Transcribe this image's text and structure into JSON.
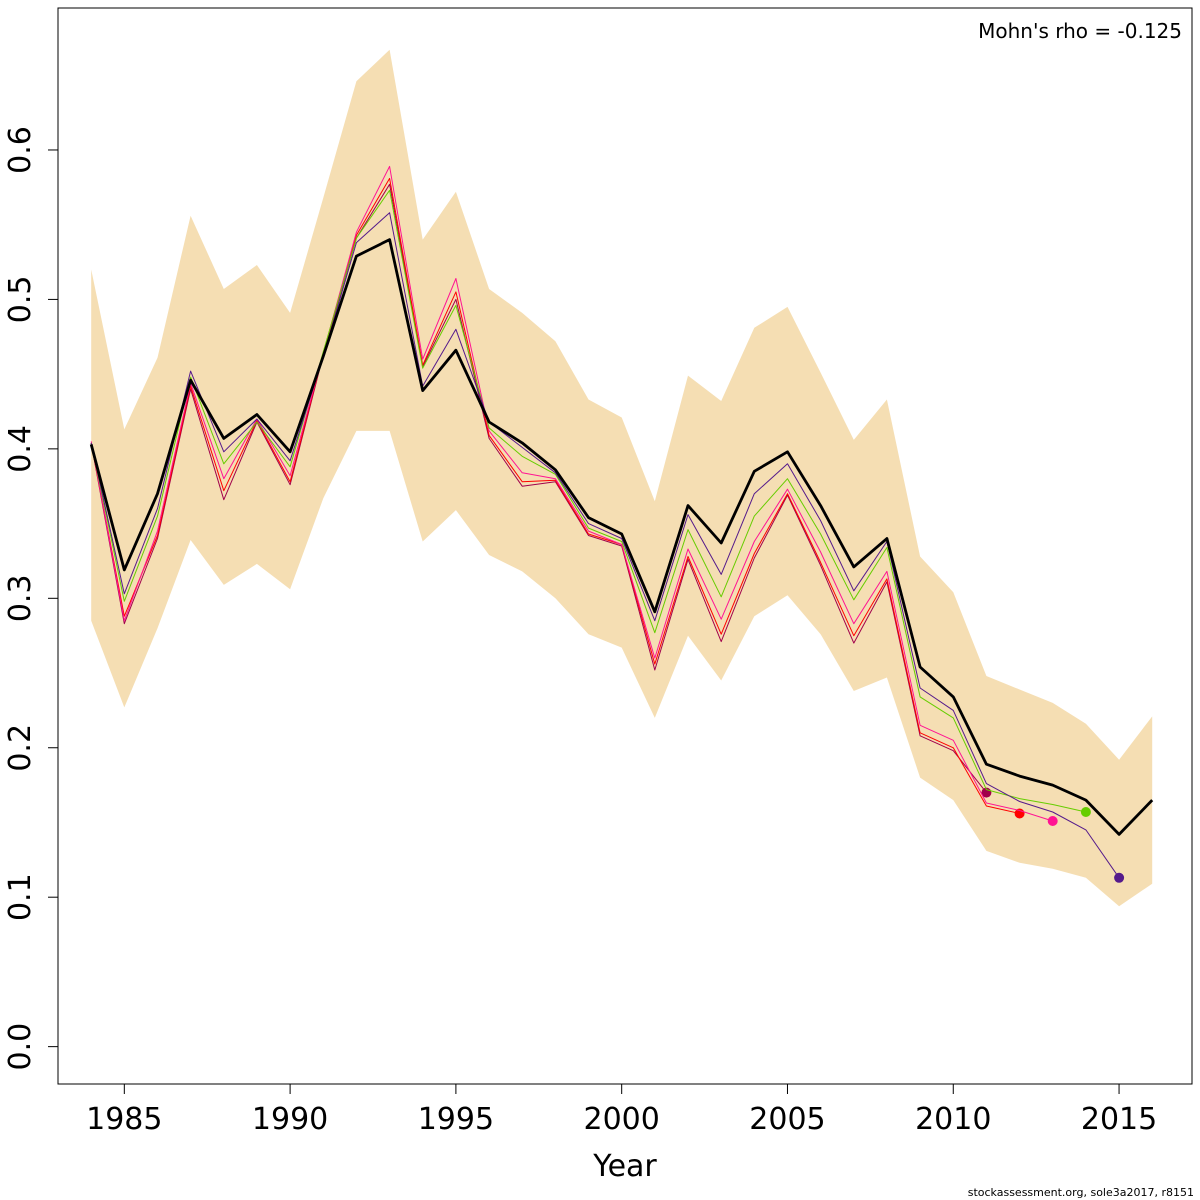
{
  "credit": "stockassessment.org, sole3a2017, r8151",
  "chart_data": {
    "type": "line",
    "title": "",
    "xlabel": "Year",
    "ylabel": "",
    "annotation": "Mohn's rho = -0.125",
    "xlim": [
      1983,
      2017.2
    ],
    "ylim": [
      -0.025,
      0.695
    ],
    "x_ticks": [
      1985,
      1990,
      1995,
      2000,
      2005,
      2010,
      2015
    ],
    "y_ticks": [
      0.0,
      0.1,
      0.2,
      0.3,
      0.4,
      0.5,
      0.6
    ],
    "y_tick_labels": [
      "0.0",
      "0.1",
      "0.2",
      "0.3",
      "0.4",
      "0.5",
      "0.6"
    ],
    "band": {
      "color": "#f5deb3",
      "x": [
        1984,
        1985,
        1986,
        1987,
        1988,
        1989,
        1990,
        1991,
        1992,
        1993,
        1994,
        1995,
        1996,
        1997,
        1998,
        1999,
        2000,
        2001,
        2002,
        2003,
        2004,
        2005,
        2006,
        2007,
        2008,
        2009,
        2010,
        2011,
        2012,
        2013,
        2014,
        2015,
        2016
      ],
      "upper": [
        0.52,
        0.413,
        0.461,
        0.556,
        0.507,
        0.523,
        0.491,
        0.568,
        0.646,
        0.667,
        0.54,
        0.572,
        0.507,
        0.491,
        0.472,
        0.433,
        0.421,
        0.365,
        0.449,
        0.432,
        0.481,
        0.495,
        0.451,
        0.406,
        0.433,
        0.328,
        0.304,
        0.248,
        0.239,
        0.23,
        0.216,
        0.192,
        0.221
      ],
      "lower": [
        0.285,
        0.227,
        0.28,
        0.339,
        0.309,
        0.323,
        0.306,
        0.367,
        0.412,
        0.412,
        0.338,
        0.359,
        0.329,
        0.318,
        0.3,
        0.276,
        0.267,
        0.22,
        0.275,
        0.245,
        0.288,
        0.302,
        0.276,
        0.238,
        0.247,
        0.18,
        0.165,
        0.131,
        0.123,
        0.119,
        0.113,
        0.094,
        0.109
      ]
    },
    "series": [
      {
        "color": "#000000",
        "width": 2.8,
        "marker": false,
        "x": [
          1984,
          1985,
          1986,
          1987,
          1988,
          1989,
          1990,
          1991,
          1992,
          1993,
          1994,
          1995,
          1996,
          1997,
          1998,
          1999,
          2000,
          2001,
          2002,
          2003,
          2004,
          2005,
          2006,
          2007,
          2008,
          2009,
          2010,
          2011,
          2012,
          2013,
          2014,
          2015,
          2016
        ],
        "values": [
          0.403,
          0.319,
          0.37,
          0.446,
          0.407,
          0.423,
          0.398,
          0.462,
          0.529,
          0.54,
          0.439,
          0.466,
          0.418,
          0.404,
          0.386,
          0.354,
          0.343,
          0.291,
          0.362,
          0.337,
          0.385,
          0.398,
          0.362,
          0.321,
          0.34,
          0.254,
          0.234,
          0.189,
          0.181,
          0.175,
          0.165,
          0.142,
          0.165
        ]
      },
      {
        "color": "#551a8b",
        "width": 1,
        "marker": true,
        "x": [
          1984,
          1985,
          1986,
          1987,
          1988,
          1989,
          1990,
          1991,
          1992,
          1993,
          1994,
          1995,
          1996,
          1997,
          1998,
          1999,
          2000,
          2001,
          2002,
          2003,
          2004,
          2005,
          2006,
          2007,
          2008,
          2009,
          2010,
          2011,
          2012,
          2013,
          2014,
          2015
        ],
        "values": [
          0.404,
          0.303,
          0.36,
          0.452,
          0.398,
          0.42,
          0.392,
          0.462,
          0.538,
          0.558,
          0.442,
          0.48,
          0.418,
          0.401,
          0.384,
          0.35,
          0.34,
          0.285,
          0.356,
          0.316,
          0.37,
          0.39,
          0.352,
          0.305,
          0.338,
          0.24,
          0.225,
          0.176,
          0.164,
          0.157,
          0.145,
          0.113
        ]
      },
      {
        "color": "#66cd00",
        "width": 1,
        "marker": true,
        "x": [
          1984,
          1985,
          1986,
          1987,
          1988,
          1989,
          1990,
          1991,
          1992,
          1993,
          1994,
          1995,
          1996,
          1997,
          1998,
          1999,
          2000,
          2001,
          2002,
          2003,
          2004,
          2005,
          2006,
          2007,
          2008,
          2009,
          2010,
          2011,
          2012,
          2013,
          2014
        ],
        "values": [
          0.404,
          0.298,
          0.355,
          0.448,
          0.39,
          0.418,
          0.388,
          0.465,
          0.541,
          0.573,
          0.454,
          0.496,
          0.414,
          0.395,
          0.383,
          0.347,
          0.338,
          0.277,
          0.346,
          0.301,
          0.355,
          0.38,
          0.343,
          0.299,
          0.334,
          0.234,
          0.22,
          0.172,
          0.166,
          0.162,
          0.157
        ]
      },
      {
        "color": "#ff1493",
        "width": 1,
        "marker": true,
        "x": [
          1984,
          1985,
          1986,
          1987,
          1988,
          1989,
          1990,
          1991,
          1992,
          1993,
          1994,
          1995,
          1996,
          1997,
          1998,
          1999,
          2000,
          2001,
          2002,
          2003,
          2004,
          2005,
          2006,
          2007,
          2008,
          2009,
          2010,
          2011,
          2012,
          2013
        ],
        "values": [
          0.405,
          0.285,
          0.345,
          0.444,
          0.38,
          0.42,
          0.382,
          0.464,
          0.545,
          0.589,
          0.46,
          0.514,
          0.412,
          0.384,
          0.38,
          0.345,
          0.336,
          0.26,
          0.333,
          0.286,
          0.338,
          0.373,
          0.331,
          0.283,
          0.318,
          0.215,
          0.205,
          0.163,
          0.158,
          0.151
        ]
      },
      {
        "color": "#ff0000",
        "width": 1,
        "marker": true,
        "x": [
          1984,
          1985,
          1986,
          1987,
          1988,
          1989,
          1990,
          1991,
          1992,
          1993,
          1994,
          1995,
          1996,
          1997,
          1998,
          1999,
          2000,
          2001,
          2002,
          2003,
          2004,
          2005,
          2006,
          2007,
          2008,
          2009,
          2010,
          2011,
          2012
        ],
        "values": [
          0.404,
          0.288,
          0.342,
          0.442,
          0.372,
          0.419,
          0.378,
          0.464,
          0.543,
          0.581,
          0.456,
          0.505,
          0.409,
          0.378,
          0.379,
          0.343,
          0.336,
          0.256,
          0.328,
          0.276,
          0.33,
          0.37,
          0.324,
          0.275,
          0.313,
          0.21,
          0.2,
          0.161,
          0.156
        ]
      },
      {
        "color": "#a1004b",
        "width": 1,
        "marker": true,
        "x": [
          1984,
          1985,
          1986,
          1987,
          1988,
          1989,
          1990,
          1991,
          1992,
          1993,
          1994,
          1995,
          1996,
          1997,
          1998,
          1999,
          2000,
          2001,
          2002,
          2003,
          2004,
          2005,
          2006,
          2007,
          2008,
          2009,
          2010,
          2011
        ],
        "values": [
          0.404,
          0.283,
          0.34,
          0.44,
          0.366,
          0.418,
          0.376,
          0.463,
          0.541,
          0.577,
          0.455,
          0.5,
          0.407,
          0.375,
          0.378,
          0.342,
          0.335,
          0.252,
          0.326,
          0.271,
          0.327,
          0.369,
          0.322,
          0.27,
          0.311,
          0.208,
          0.198,
          0.17
        ]
      }
    ]
  }
}
